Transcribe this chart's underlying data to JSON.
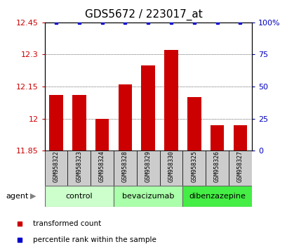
{
  "title": "GDS5672 / 223017_at",
  "samples": [
    "GSM958322",
    "GSM958323",
    "GSM958324",
    "GSM958328",
    "GSM958329",
    "GSM958330",
    "GSM958325",
    "GSM958326",
    "GSM958327"
  ],
  "red_values": [
    12.11,
    12.11,
    12.0,
    12.16,
    12.25,
    12.32,
    12.1,
    11.97,
    11.97
  ],
  "blue_values": [
    100,
    100,
    100,
    100,
    100,
    100,
    100,
    100,
    100
  ],
  "ylim_left": [
    11.85,
    12.45
  ],
  "ylim_right": [
    0,
    100
  ],
  "yticks_left": [
    11.85,
    12.0,
    12.15,
    12.3,
    12.45
  ],
  "yticks_right": [
    0,
    25,
    50,
    75,
    100
  ],
  "ytick_labels_left": [
    "11.85",
    "12",
    "12.15",
    "12.3",
    "12.45"
  ],
  "ytick_labels_right": [
    "0",
    "25",
    "50",
    "75",
    "100%"
  ],
  "grid_lines": [
    12.0,
    12.15,
    12.3
  ],
  "groups": [
    {
      "label": "control",
      "indices": [
        0,
        1,
        2
      ],
      "color": "#ccffcc"
    },
    {
      "label": "bevacizumab",
      "indices": [
        3,
        4,
        5
      ],
      "color": "#aaffaa"
    },
    {
      "label": "dibenzazepine",
      "indices": [
        6,
        7,
        8
      ],
      "color": "#44ee44"
    }
  ],
  "agent_label": "agent",
  "legend_items": [
    {
      "label": "transformed count",
      "color": "#cc0000"
    },
    {
      "label": "percentile rank within the sample",
      "color": "#0000cc"
    }
  ],
  "bar_color": "#cc0000",
  "dot_color": "#0000cc",
  "bar_bottom": 11.85,
  "bar_width": 0.6,
  "left_tick_color": "#cc0000",
  "right_tick_color": "#0000bb",
  "title_fontsize": 11,
  "tick_fontsize": 8,
  "label_fontsize": 8,
  "sample_fontsize": 6,
  "group_fontsize": 8
}
